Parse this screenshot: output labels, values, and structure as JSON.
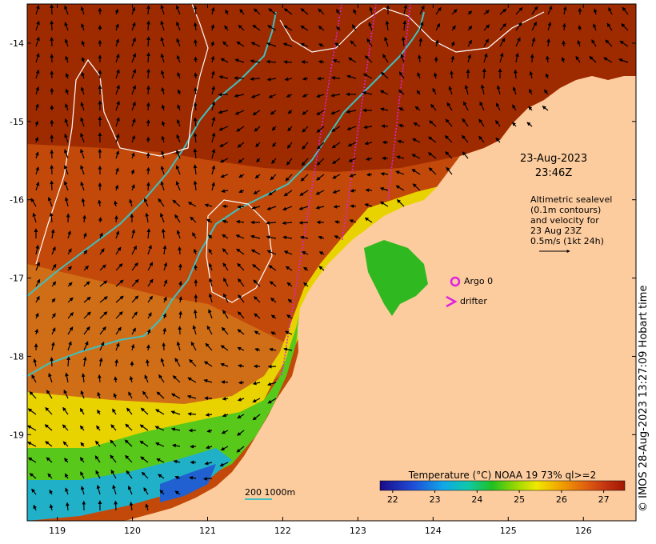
{
  "map": {
    "axes": {
      "x_ticks": [
        "119",
        "120",
        "121",
        "122",
        "123",
        "124",
        "125",
        "126"
      ],
      "y_ticks": [
        "-14",
        "-15",
        "-16",
        "-17",
        "-18",
        "-19"
      ],
      "lon_range": [
        118.6,
        126.7
      ],
      "lat_range": [
        -20.1,
        -13.5
      ]
    },
    "date": {
      "line1": "23-Aug-2023",
      "line2": "23:46Z"
    },
    "altimetry": {
      "line1": "Altimetric sealevel",
      "line2": "(0.1m contours)",
      "line3": "and velocity for",
      "line4": "23 Aug 23Z",
      "line5": "0.5m/s (1kt 24h)"
    },
    "legend": {
      "argo_label": "Argo 0",
      "drifter_label": "drifter",
      "argo_color": "#e020e0",
      "drifter_color": "#e020e0"
    },
    "credit": "© IMOS 28-Aug-2023 13:27:09 Hobart time",
    "scale": {
      "label": "200  1000m",
      "color": "#40c0c0"
    },
    "colorbar": {
      "title": "Temperature (°C) NOAA 19 73% ql>=2",
      "ticks": [
        "22",
        "23",
        "24",
        "25",
        "26",
        "27"
      ],
      "range": [
        21.7,
        27.5
      ]
    },
    "colors": {
      "land": "#fdcc9e",
      "warm": "#a52a00",
      "isobath": "#40c0c0",
      "contour": "#ffffff",
      "track": "#e020e0"
    }
  }
}
